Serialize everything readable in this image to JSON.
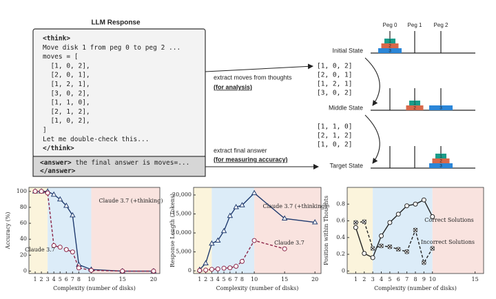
{
  "diagram": {
    "title": "LLM Response",
    "thought_lines": [
      {
        "text": "<think>",
        "bold": true
      },
      {
        "text": "Move disk 1 from peg 0 to peg 2 ..."
      },
      {
        "text": "moves = ["
      },
      {
        "text": "  [1, 0, 2],",
        "color": "#1e9b3c"
      },
      {
        "text": "  [2, 0, 1],",
        "color": "#a326c4"
      },
      {
        "text": "  [1, 2, 1],",
        "color": "#1a5fd0"
      },
      {
        "text": "  [3, 0, 2],",
        "color": "#b8680c"
      },
      {
        "text": "  [1, 1, 0],",
        "color": "#1f93d2"
      },
      {
        "text": "  [2, 1, 2],",
        "color": "#a326c4"
      },
      {
        "text": "  [1, 0, 2],",
        "color": "#b8680c"
      },
      {
        "text": "]"
      },
      {
        "text": "Let me double-check this..."
      },
      {
        "text": "</think>",
        "bold": true
      }
    ],
    "answer_lines": [
      {
        "tag": "<answer>",
        "text": " the final answer is moves=..."
      },
      {
        "tag": "</answer>"
      }
    ],
    "extract_moves": {
      "label": "extract moves  from thoughts",
      "note": "(for analysis)"
    },
    "extract_answer": {
      "label": "extract final answer",
      "note": "(for measuring accuracy)"
    },
    "pegs": [
      "Peg 0",
      "Peg 1",
      "Peg 2"
    ],
    "disk_colors": {
      "1": "#1a9c8a",
      "2": "#d8684a",
      "3": "#2b86d8"
    },
    "states": [
      {
        "label": "Initial State",
        "stacks": [
          [
            "3",
            "2",
            "1"
          ],
          [],
          []
        ]
      },
      {
        "label": "Middle State",
        "stacks": [
          [],
          [
            "2",
            "1"
          ],
          [
            "3"
          ]
        ]
      },
      {
        "label": "Target State",
        "stacks": [
          [],
          [],
          [
            "3",
            "2",
            "1"
          ]
        ]
      }
    ],
    "moves_first": [
      {
        "text": "[1, 0, 2]",
        "color": "#1e9b3c"
      },
      {
        "text": "[2, 0, 1]",
        "color": "#a326c4"
      },
      {
        "text": "[1, 2, 1]",
        "color": "#1a5fd0"
      },
      {
        "text": "[3, 0, 2]",
        "color": "#b8680c"
      }
    ],
    "moves_second": [
      {
        "text": "[1, 1, 0]",
        "color": "#1f93d2"
      },
      {
        "text": "[2, 1, 2]",
        "color": "#a326c4"
      },
      {
        "text": "[1, 0, 2]",
        "color": "#b8680c"
      }
    ]
  },
  "chart_data": [
    {
      "type": "line",
      "x_label": "Complexity (number of disks)",
      "y_label": "Accuracy (%)",
      "x": [
        1,
        2,
        3,
        4,
        5,
        6,
        7,
        8,
        10,
        15,
        20
      ],
      "xlim": [
        0,
        21
      ],
      "xticks": [
        1,
        2,
        3,
        4,
        5,
        6,
        7,
        8,
        10,
        15,
        20
      ],
      "ylim": [
        -3,
        105
      ],
      "yticks": [
        0,
        20,
        40,
        60,
        80,
        100
      ],
      "regions": [
        {
          "from": 0,
          "to": 3,
          "color": "#fbf4dc"
        },
        {
          "from": 3,
          "to": 10,
          "color": "#dcecf8"
        },
        {
          "from": 10,
          "to": 21,
          "color": "#f9e3df"
        }
      ],
      "series": [
        {
          "name": "Claude 3.7 (+thinking)",
          "color": "#1f3a6e",
          "marker": "triangle",
          "dashed": false,
          "values": [
            100,
            100,
            100,
            96,
            90,
            82,
            70,
            8,
            2,
            0,
            0
          ]
        },
        {
          "name": "Claude 3.7",
          "color": "#8b2346",
          "marker": "circle",
          "dashed": true,
          "values": [
            100,
            100,
            98,
            32,
            30,
            27,
            24,
            4,
            1,
            0,
            0
          ]
        }
      ]
    },
    {
      "type": "line",
      "x_label": "Complexity (number of disks)",
      "y_label": "Response Length (Tokens)",
      "x": [
        1,
        2,
        3,
        4,
        5,
        6,
        7,
        8,
        10,
        15,
        20
      ],
      "xlim": [
        0,
        21
      ],
      "xticks": [
        1,
        2,
        3,
        4,
        5,
        6,
        7,
        8,
        10,
        15,
        20
      ],
      "ylim": [
        -700,
        22000
      ],
      "yticks": [
        0,
        {
          "value": 5000,
          "label": "5,000"
        },
        {
          "value": 10000,
          "label": "10,000"
        },
        {
          "value": 15000,
          "label": "15,000"
        },
        {
          "value": 20000,
          "label": "20,000"
        }
      ],
      "regions": [
        {
          "from": 0,
          "to": 3,
          "color": "#fbf4dc"
        },
        {
          "from": 3,
          "to": 10,
          "color": "#dcecf8"
        },
        {
          "from": 10,
          "to": 21,
          "color": "#f9e3df"
        }
      ],
      "series": [
        {
          "name": "Claude 3.7 (+thinking)",
          "color": "#1f3a6e",
          "marker": "triangle",
          "dashed": false,
          "values": [
            300,
            2000,
            7200,
            8000,
            10500,
            14500,
            16800,
            17300,
            20500,
            13800,
            12800
          ]
        },
        {
          "name": "Claude 3.7",
          "color": "#8b2346",
          "marker": "circle",
          "dashed": true,
          "values": [
            100,
            200,
            400,
            500,
            700,
            800,
            1200,
            2500,
            8000,
            5800,
            null
          ]
        }
      ]
    },
    {
      "type": "line",
      "x_label": "Complexity (number of disks)",
      "y_label": "Position within Thoughts",
      "x": [
        1,
        2,
        3,
        4,
        5,
        6,
        7,
        8,
        9,
        10
      ],
      "xlim": [
        0,
        16
      ],
      "xticks": [
        1,
        2,
        3,
        4,
        5,
        6,
        7,
        8,
        9,
        10,
        15
      ],
      "ylim": [
        -0.03,
        1.0
      ],
      "yticks": [
        0,
        0.2,
        0.4,
        0.6,
        0.8
      ],
      "regions": [
        {
          "from": 0,
          "to": 3,
          "color": "#fbf4dc"
        },
        {
          "from": 3,
          "to": 10,
          "color": "#dcecf8"
        },
        {
          "from": 10,
          "to": 16,
          "color": "#f9e3df"
        }
      ],
      "series": [
        {
          "name": "Correct Solutions",
          "color": "#222222",
          "marker": "circle",
          "dashed": false,
          "values": [
            0.52,
            0.21,
            0.16,
            0.42,
            0.58,
            0.68,
            0.78,
            0.8,
            0.85,
            0.65
          ]
        },
        {
          "name": "Incorrect Solutions",
          "color": "#222222",
          "marker": "x",
          "dashed": true,
          "values": [
            0.58,
            0.59,
            0.27,
            0.3,
            0.29,
            0.26,
            0.23,
            0.49,
            0.1,
            0.27
          ]
        }
      ]
    }
  ]
}
